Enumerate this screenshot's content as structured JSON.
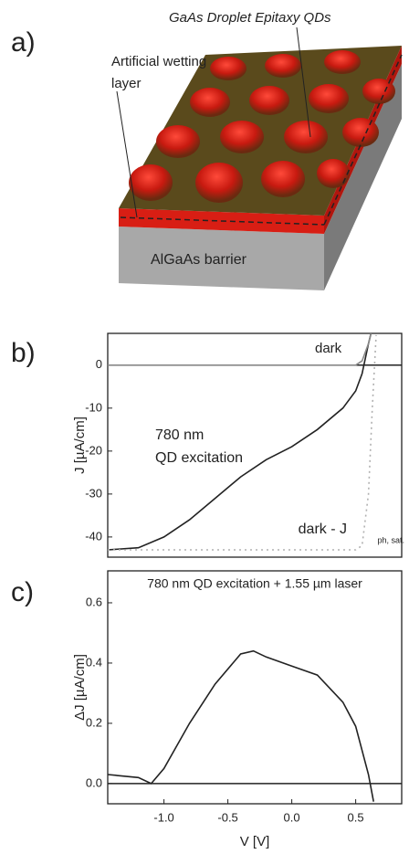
{
  "panels": [
    "a)",
    "b)",
    "c)"
  ],
  "diagram": {
    "labels": [
      "GaAs Droplet Epitaxy QDs",
      "Artificial wetting",
      "layer",
      "AlGaAs barrier"
    ]
  },
  "chart_data": [
    {
      "type": "line",
      "ylabel": "J [µA/cm]",
      "xlim": [
        -1.44,
        0.86
      ],
      "ylim": [
        -44.7,
        7.4
      ],
      "yticks": [
        0,
        -10,
        -20,
        -30,
        -40
      ],
      "annotations": [
        "780 nm",
        "QD excitation",
        "dark",
        "dark - J",
        "ph, sat."
      ],
      "series": [
        {
          "color": "#222222",
          "style": "solid",
          "x": [
            -1.44,
            -1.2,
            -1.0,
            -0.8,
            -0.6,
            -0.4,
            -0.2,
            0.0,
            0.2,
            0.4,
            0.5,
            0.55,
            0.6,
            0.62
          ],
          "values": [
            -43,
            -42.5,
            -40,
            -36,
            -31,
            -26,
            -22,
            -19,
            -15,
            -10,
            -6,
            -2,
            5,
            7.4
          ]
        },
        {
          "color": "#888888",
          "style": "solid",
          "x": [
            -1.44,
            0.5,
            0.55,
            0.6,
            0.62
          ],
          "values": [
            0,
            0,
            1,
            5,
            7.4
          ]
        },
        {
          "color": "#b0b0b0",
          "style": "dotted",
          "x": [
            -1.44,
            0.5,
            0.55,
            0.6,
            0.63,
            0.66
          ],
          "values": [
            -43,
            -43,
            -42,
            -30,
            -10,
            7
          ]
        }
      ]
    },
    {
      "type": "line",
      "title": "780 nm QD excitation + 1.55 µm laser",
      "xlabel": "V [V]",
      "ylabel": "ΔJ [µA/cm]",
      "xlim": [
        -1.44,
        0.86
      ],
      "ylim": [
        -0.067,
        0.706
      ],
      "xticks": [
        {
          "value": -1.0,
          "label": "-1.0"
        },
        -0.5,
        {
          "value": 0,
          "label": "0.0"
        },
        0.5
      ],
      "yticks": [
        {
          "value": 0,
          "label": "0.0"
        },
        0.2,
        0.4,
        0.6
      ],
      "series": [
        {
          "color": "#222222",
          "style": "solid",
          "x": [
            -1.44,
            -1.2,
            -1.1,
            -1.0,
            -0.8,
            -0.6,
            -0.4,
            -0.3,
            -0.2,
            0.0,
            0.2,
            0.4,
            0.5,
            0.6,
            0.64
          ],
          "values": [
            0.03,
            0.02,
            0.0,
            0.05,
            0.2,
            0.33,
            0.43,
            0.44,
            0.42,
            0.39,
            0.36,
            0.27,
            0.19,
            0.03,
            -0.06
          ]
        }
      ]
    }
  ]
}
